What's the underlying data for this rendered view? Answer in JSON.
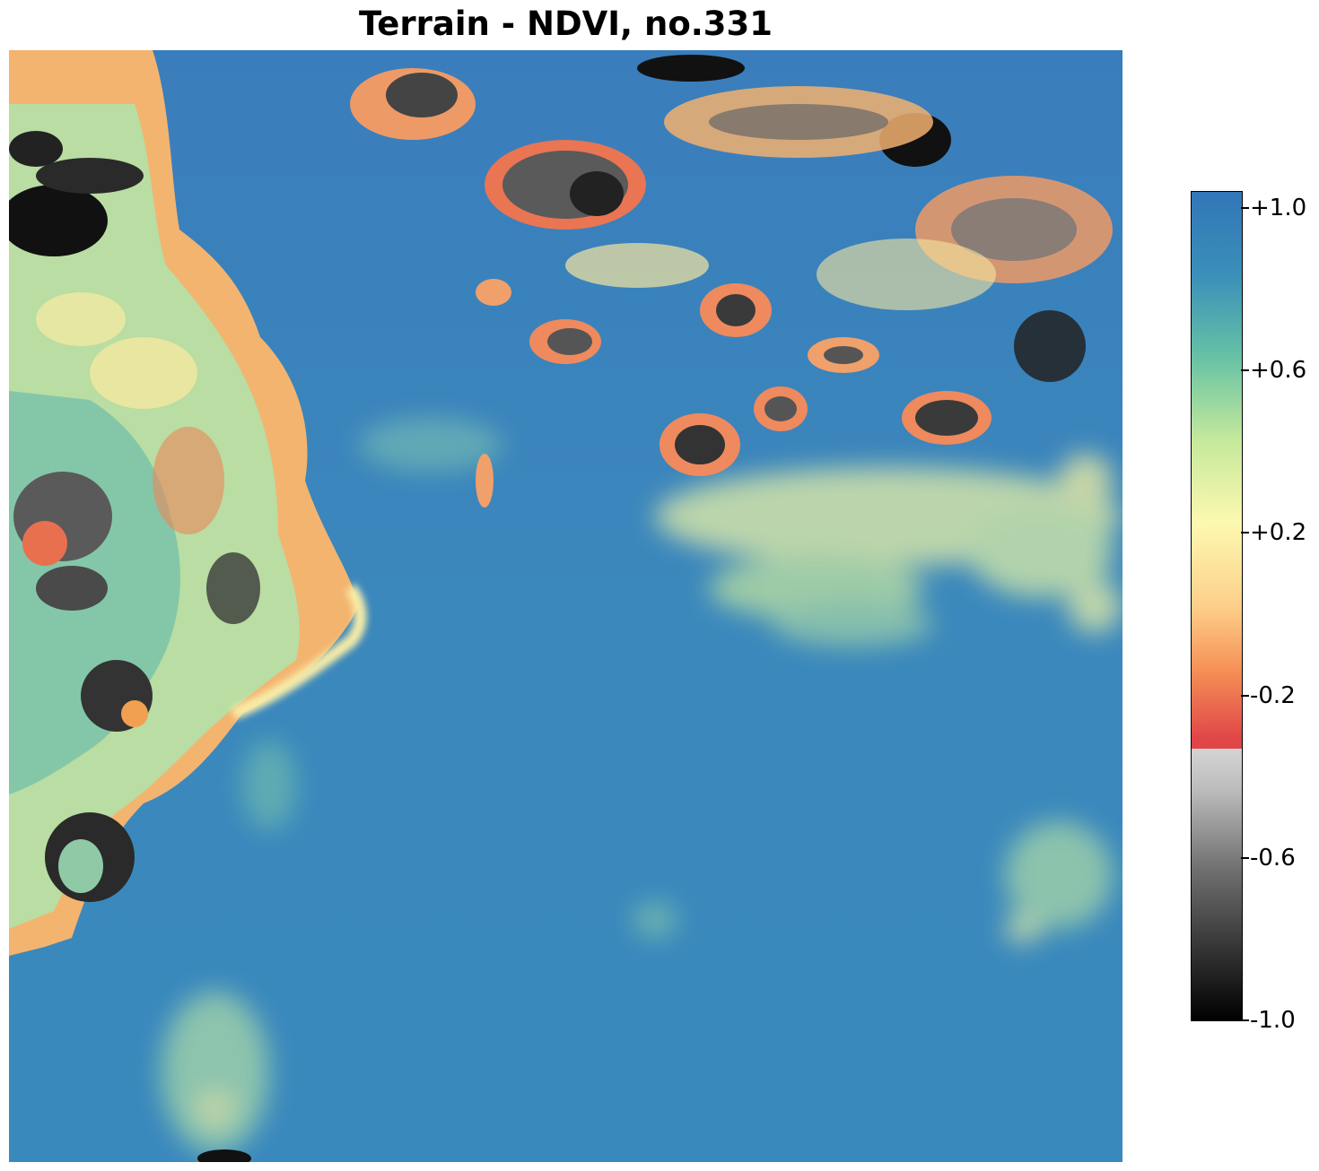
{
  "title": "Terrain - NDVI, no.331",
  "colorbar": {
    "min": -1.0,
    "max": 1.0,
    "ticks": [
      {
        "value": 1.0,
        "label": "+1.0"
      },
      {
        "value": 0.6,
        "label": "+0.6"
      },
      {
        "value": 0.2,
        "label": "+0.2"
      },
      {
        "value": -0.2,
        "label": "-0.2"
      },
      {
        "value": -0.6,
        "label": "-0.6"
      },
      {
        "value": -1.0,
        "label": "-1.0"
      }
    ],
    "colors": {
      "high": "#3a7fbd",
      "upper_mid": "#6cc3a5",
      "mid": "#fdf3aa",
      "lower_mid": "#f79f5c",
      "negative_edge": "#e04a4a",
      "gray_top": "#cccccc",
      "gray_bottom": "#000000"
    }
  }
}
